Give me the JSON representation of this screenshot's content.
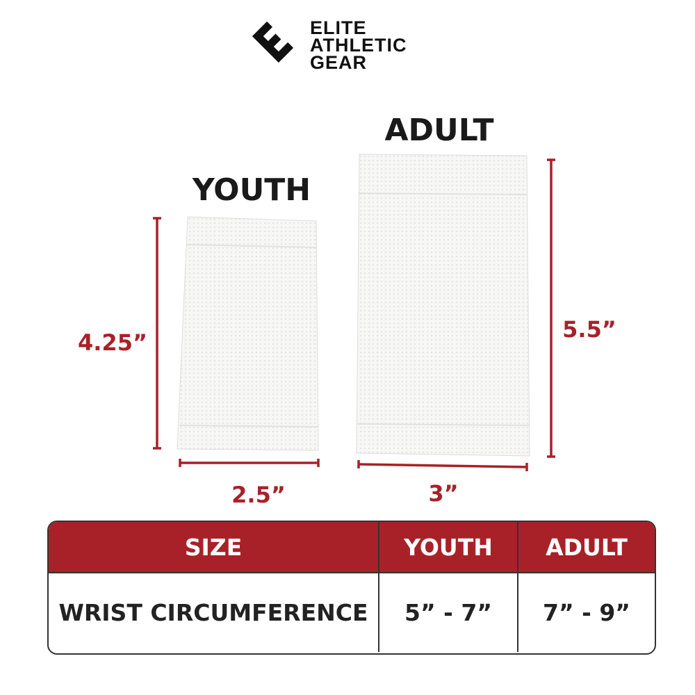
{
  "brand": {
    "logo_icon": "elite-e-logo-icon",
    "line1": "ELITE",
    "line2": "ATHLETIC",
    "line3": "GEAR"
  },
  "products": {
    "youth": {
      "title": "YOUTH",
      "height": "4.25”",
      "width": "2.5”"
    },
    "adult": {
      "title": "ADULT",
      "height": "5.5”",
      "width": "3”"
    }
  },
  "colors": {
    "accent": "#a92128",
    "text": "#1a1a1a"
  },
  "size_table": {
    "headers": [
      "SIZE",
      "YOUTH",
      "ADULT"
    ],
    "rows": [
      [
        "WRIST CIRCUMFERENCE",
        "5” - 7”",
        "7” - 9”"
      ]
    ]
  }
}
